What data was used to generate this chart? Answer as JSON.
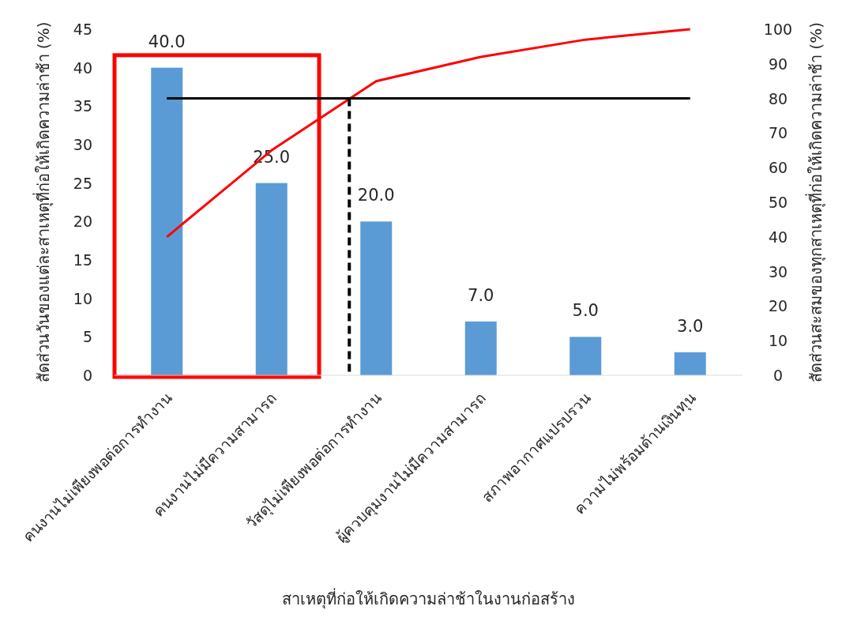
{
  "chart_data": {
    "type": "bar",
    "xlabel": "สาเหตุที่ก่อให้เกิดความล่าช้าในงานก่อสร้าง",
    "ylabel": "สัดส่วนวันของแต่ละสาเหตุที่ก่อให้เกิดความล่าช้า  (%)",
    "y2label": "สัดส่วนสะสมของทุกสาเหตุที่ก่อให้เกิดความล่าช้า  (%)",
    "categories": [
      "คนงานไม่เพียงพอต่อการทำงาน",
      "คนงานไม่มีความสามารถ",
      "วัสดุไม่เพียงพอต่อการทำงาน",
      "ผู้ควบคุมงานไม่มีความสามารถ",
      "สภาพอากาศแปรปรวน",
      "ความไม่พร้อมด้านเงินทุน"
    ],
    "series": [
      {
        "color": "#5b9bd5",
        "values": [
          40,
          25,
          20,
          7,
          5,
          3
        ],
        "value_labels": [
          "40.0",
          "25.0",
          "20.0",
          "7.0",
          "5.0",
          "3.0"
        ]
      },
      {
        "type": "line",
        "axis": "y2",
        "color": "#ff0000",
        "values": [
          40,
          65,
          85,
          92,
          97,
          100
        ]
      }
    ],
    "ylim": [
      0,
      45
    ],
    "yticks": [
      0,
      5,
      10,
      15,
      20,
      25,
      30,
      35,
      40,
      45
    ],
    "y2lim": [
      0,
      100
    ],
    "y2ticks": [
      0,
      10,
      20,
      30,
      40,
      50,
      60,
      70,
      80,
      90,
      100
    ],
    "ref_lines": [
      {
        "axis": "y2",
        "value": 80,
        "color": "#000000",
        "line_style": "solid"
      },
      {
        "axis": "x",
        "value": "วัสดุไม่เพียงพอต่อการทำงาน",
        "color": "#000000",
        "line_style": "dashed"
      }
    ],
    "grid": false,
    "legend": false
  }
}
